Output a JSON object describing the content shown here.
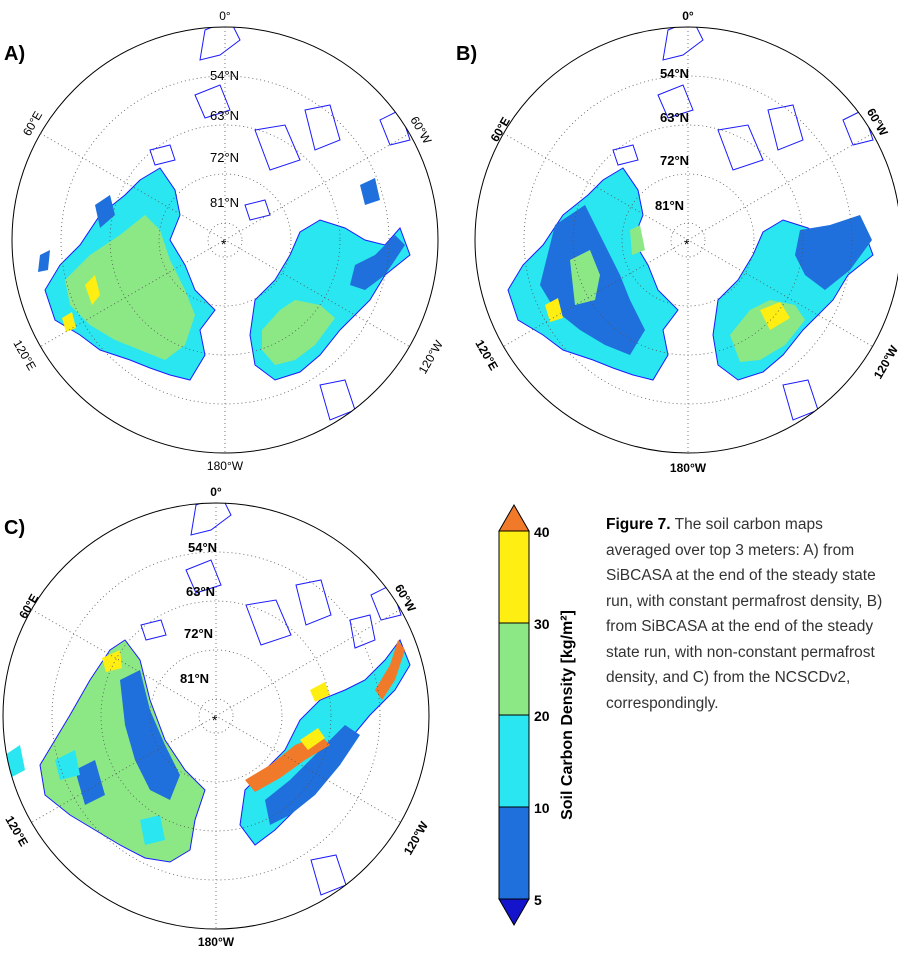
{
  "panels": [
    {
      "id": "A",
      "label": "A)",
      "meridians": {
        "top": "0°",
        "upper_left": "60°E",
        "upper_right": "60°W",
        "lower_left": "120°E",
        "lower_right": "120°W",
        "bottom": "180°W"
      },
      "latitudes": [
        "54°N",
        "63°N",
        "72°N",
        "81°N"
      ],
      "pole_marker": "*"
    },
    {
      "id": "B",
      "label": "B)",
      "meridians": {
        "top": "0°",
        "upper_left": "60°E",
        "upper_right": "60°W",
        "lower_left": "120°E",
        "lower_right": "120°W",
        "bottom": "180°W"
      },
      "latitudes": [
        "54°N",
        "63°N",
        "72°N",
        "81°N"
      ],
      "pole_marker": "*"
    },
    {
      "id": "C",
      "label": "C)",
      "meridians": {
        "top": "0°",
        "upper_left": "60°E",
        "upper_right": "60°W",
        "lower_left": "120°E",
        "lower_right": "120°W",
        "bottom": "180°W"
      },
      "latitudes": [
        "54°N",
        "63°N",
        "72°N",
        "81°N"
      ],
      "pole_marker": "*"
    }
  ],
  "colorbar": {
    "label": "Soil Carbon Density [kg/m²]",
    "ticks": [
      "5",
      "10",
      "20",
      "30",
      "40"
    ],
    "segments": [
      {
        "from": 5,
        "to": 10,
        "color": "#1f6fdc"
      },
      {
        "from": 10,
        "to": 20,
        "color": "#29e6f0"
      },
      {
        "from": 20,
        "to": 30,
        "color": "#8ce885"
      },
      {
        "from": 30,
        "to": 40,
        "color": "#ffee11"
      }
    ],
    "over_color": "#f07a2a",
    "under_color": "#1414cc"
  },
  "caption": {
    "bold": "Figure 7.",
    "text": " The soil carbon maps averaged over top 3 meters: A) from SiBCASA at the end of the steady state run, with constant permafrost density, B) from SiBCASA at the end of the steady state run, with non-constant permafrost density, and C)  from the NCSCDv2, correspondingly."
  },
  "colors": {
    "coastline": "#1a1aff",
    "graticule": "#555555",
    "no_data": "#ffffff"
  }
}
